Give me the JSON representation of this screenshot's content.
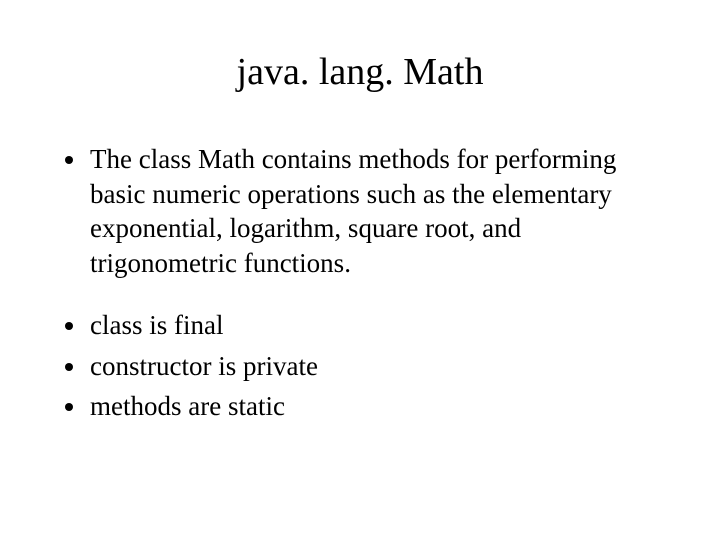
{
  "slide": {
    "title": "java. lang. Math",
    "title_fontsize": 38,
    "body_fontsize": 27,
    "background_color": "#ffffff",
    "text_color": "#000000",
    "font_family": "Times New Roman",
    "bullets_group1": [
      "The class Math contains methods for performing basic numeric operations such as the elementary exponential, logarithm, square root, and trigonometric functions."
    ],
    "bullets_group2": [
      "class is final",
      "constructor is private",
      "methods are static"
    ]
  }
}
